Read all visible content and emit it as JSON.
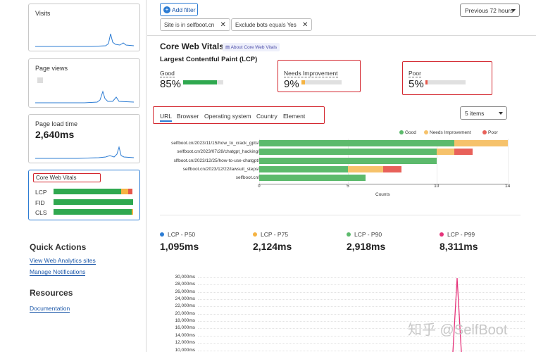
{
  "sidebar": {
    "visits": {
      "title": "Visits"
    },
    "page_views": {
      "title": "Page views"
    },
    "page_load": {
      "title": "Page load time",
      "value": "2,640ms"
    },
    "core_web_vitals": {
      "title": "Core Web Vitals",
      "rows": [
        {
          "label": "LCP",
          "good": 85,
          "needs": 9,
          "poor": 5
        },
        {
          "label": "FID",
          "good": 100,
          "needs": 0,
          "poor": 0
        },
        {
          "label": "CLS",
          "good": 98,
          "needs": 2,
          "poor": 0
        }
      ]
    },
    "quick_actions": {
      "title": "Quick Actions",
      "links": [
        "View Web Analytics sites",
        "Manage Notifications"
      ]
    },
    "resources": {
      "title": "Resources",
      "links": [
        "Documentation"
      ]
    }
  },
  "toolbar": {
    "add_filter": "Add filter",
    "filters": [
      {
        "key": "Site",
        "op": "is in",
        "value": "selfboot.cn"
      },
      {
        "key": "Exclude bots",
        "op": "equals",
        "value": "Yes"
      }
    ],
    "period": "Previous 72 hours"
  },
  "cwv": {
    "title": "Core Web Vitals",
    "about": "About Core Web Vitals",
    "subtitle": "Largest Contentful Paint (LCP)",
    "metrics": [
      {
        "label": "Good",
        "value": "85%",
        "fill": 85,
        "color": "#2fa84f"
      },
      {
        "label": "Needs Improvement",
        "value": "9%",
        "fill": 9,
        "color": "#f5b342"
      },
      {
        "label": "Poor",
        "value": "5%",
        "fill": 5,
        "color": "#e5574a"
      }
    ],
    "tabs": [
      "URL",
      "Browser",
      "Operating system",
      "Country",
      "Element"
    ],
    "items_select": "5 items"
  },
  "colors": {
    "good": "#5cba6c",
    "needs": "#f6c26b",
    "poor": "#e8615a",
    "accent": "#2c7cd3"
  },
  "chart_data": [
    {
      "type": "bar",
      "orientation": "horizontal",
      "stacked": true,
      "categories": [
        "selfboot.cn/2023/11/15/how_to_crack_gpts/",
        "selfboot.cn/2023/07/28/chatgpt_hacking/",
        "slfboot.cn/2023/12/25/how-to-use-chatgpt/",
        "selfboot.cn/2023/12/22/lawsuit_steps/",
        "selfboot.cn/"
      ],
      "series": [
        {
          "name": "Good",
          "values": [
            11,
            10,
            10,
            5,
            6
          ]
        },
        {
          "name": "Needs Improvement",
          "values": [
            3,
            1,
            0,
            2,
            0
          ]
        },
        {
          "name": "Poor",
          "values": [
            0,
            1,
            0,
            1,
            0
          ]
        }
      ],
      "xlabel": "Counts",
      "xticks": [
        0,
        5,
        10,
        14
      ],
      "xlim": [
        0,
        14
      ],
      "legend": "top-right"
    },
    {
      "type": "line",
      "series_summary": [
        {
          "name": "LCP - P50",
          "value": "1,095ms",
          "color": "#2c7cd3"
        },
        {
          "name": "LCP - P75",
          "value": "2,124ms",
          "color": "#f5b342"
        },
        {
          "name": "LCP - P90",
          "value": "2,918ms",
          "color": "#5cba6c"
        },
        {
          "name": "LCP - P99",
          "value": "8,311ms",
          "color": "#e5337a"
        }
      ],
      "yticks": [
        "30,000ms",
        "28,000ms",
        "26,000ms",
        "24,000ms",
        "22,000ms",
        "20,000ms",
        "18,000ms",
        "16,000ms",
        "14,000ms",
        "12,000ms",
        "10,000ms"
      ],
      "ylim": [
        10000,
        30000
      ]
    }
  ],
  "watermark": "知乎 @SelfBoot"
}
